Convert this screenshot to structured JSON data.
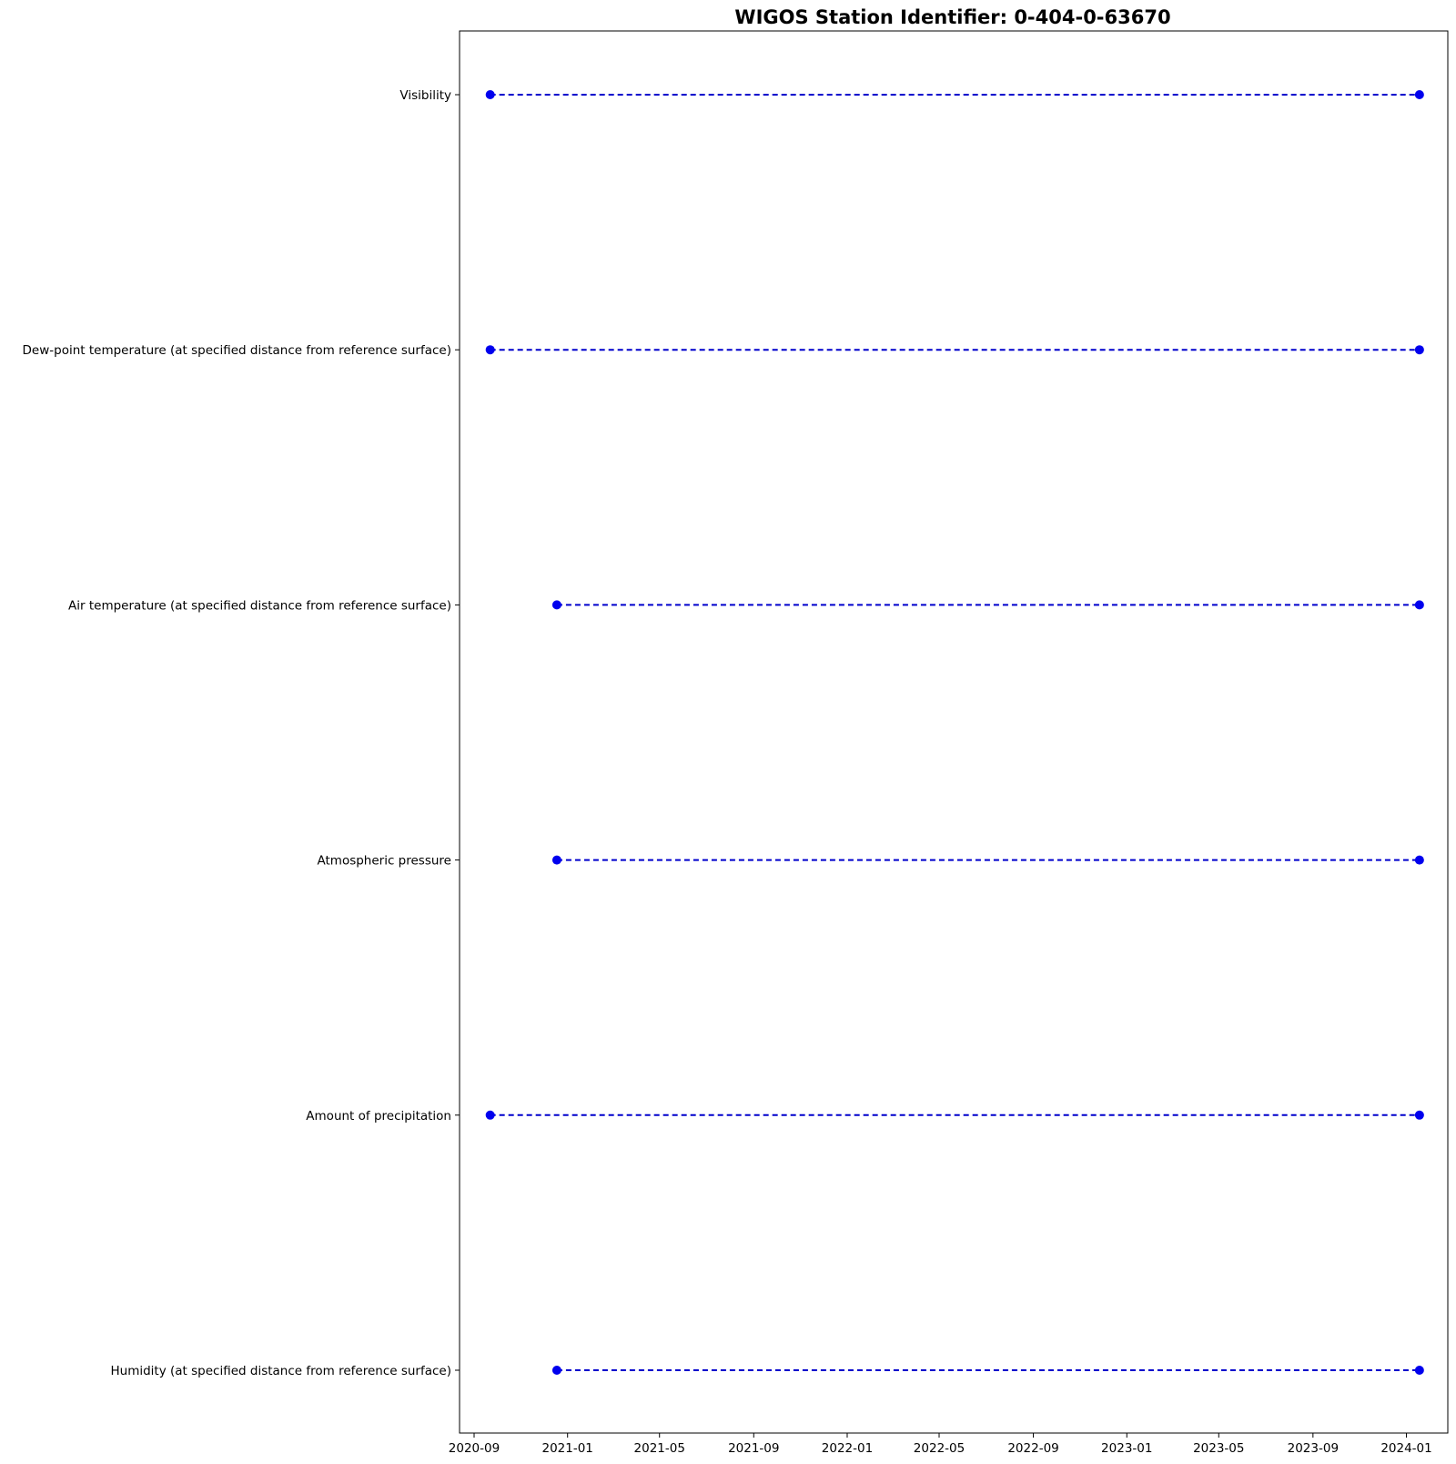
{
  "chart_data": {
    "type": "line",
    "title": "WIGOS Station Identifier: 0-404-0-63670",
    "xlabel": "",
    "ylabel": "",
    "x_tick_labels": [
      "2020-09",
      "2021-01",
      "2021-05",
      "2021-09",
      "2022-01",
      "2022-05",
      "2022-09",
      "2023-01",
      "2023-05",
      "2023-09",
      "2024-01"
    ],
    "xlim": [
      "2020-08-13",
      "2024-02-24"
    ],
    "categories": [
      "Visibility",
      "Dew-point temperature (at specified distance from reference surface)",
      "Air temperature (at specified distance from reference surface)",
      "Atmospheric pressure",
      "Amount of precipitation",
      "Humidity  (at specified distance from reference surface)"
    ],
    "series": [
      {
        "category": "Visibility",
        "x": [
          "2020-09-22",
          "2024-01-18"
        ]
      },
      {
        "category": "Dew-point temperature (at specified distance from reference surface)",
        "x": [
          "2020-09-22",
          "2024-01-18"
        ]
      },
      {
        "category": "Air temperature (at specified distance from reference surface)",
        "x": [
          "2020-12-18",
          "2024-01-18"
        ]
      },
      {
        "category": "Atmospheric pressure",
        "x": [
          "2020-12-18",
          "2024-01-18"
        ]
      },
      {
        "category": "Amount of precipitation",
        "x": [
          "2020-09-22",
          "2024-01-18"
        ]
      },
      {
        "category": "Humidity  (at specified distance from reference surface)",
        "x": [
          "2020-12-18",
          "2024-01-18"
        ]
      }
    ],
    "line_style": "dashed",
    "marker": "circle",
    "color": "#0000ee",
    "grid": false,
    "legend": "none"
  }
}
